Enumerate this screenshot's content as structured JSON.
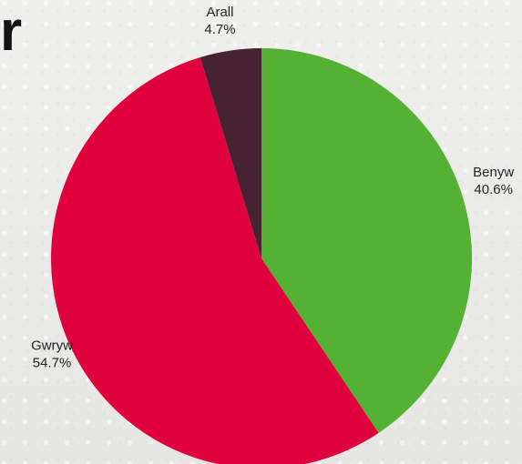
{
  "page": {
    "heading_fragment": "r"
  },
  "chart_data": {
    "type": "pie",
    "slices": [
      {
        "label": "Benyw",
        "value": 40.6,
        "display": "40.6%",
        "color": "#55b133"
      },
      {
        "label": "Gwryw",
        "value": 54.7,
        "display": "54.7%",
        "color": "#e0023d"
      },
      {
        "label": "Arall",
        "value": 4.7,
        "display": "4.7%",
        "color": "#472331"
      }
    ],
    "start_angle_deg": 0,
    "direction": "clockwise"
  }
}
